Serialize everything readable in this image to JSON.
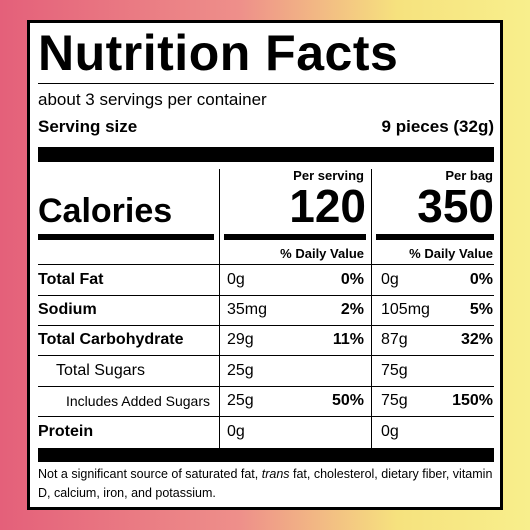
{
  "header": {
    "title": "Nutrition Facts",
    "servings": "about 3 servings per container",
    "serving_size_label": "Serving size",
    "serving_size": "9 pieces (32g)"
  },
  "calories": {
    "label": "Calories",
    "per_serving_heading": "Per serving",
    "per_serving": 120,
    "per_bag_heading": "Per bag",
    "per_bag": 350
  },
  "daily_value_heading": "% Daily Value",
  "table": {
    "rows": [
      {
        "label": "Total Fat",
        "per_serving": {
          "amount": "0g",
          "dv": "0%"
        },
        "per_bag": {
          "amount": "0g",
          "dv": "0%"
        }
      },
      {
        "label": "Sodium",
        "per_serving": {
          "amount": "35mg",
          "dv": "2%"
        },
        "per_bag": {
          "amount": "105mg",
          "dv": "5%"
        }
      },
      {
        "label": "Total Carbohydrate",
        "per_serving": {
          "amount": "29g",
          "dv": "11%"
        },
        "per_bag": {
          "amount": "87g",
          "dv": "32%"
        }
      },
      {
        "label": "Total Sugars",
        "per_serving": {
          "amount": "25g"
        },
        "per_bag": {
          "amount": "75g"
        }
      },
      {
        "label": "Includes Added Sugars",
        "per_serving": {
          "amount": "25g",
          "dv": "50%"
        },
        "per_bag": {
          "amount": "75g",
          "dv": "150%"
        }
      },
      {
        "label": "Protein",
        "per_serving": {
          "amount": "0g"
        },
        "per_bag": {
          "amount": "0g"
        }
      }
    ]
  },
  "footnote": {
    "parts": [
      "Not a significant source of saturated fat, ",
      "trans",
      " fat, cholesterol, dietary fiber, vitamin D, calcium, iron, and potassium."
    ]
  }
}
